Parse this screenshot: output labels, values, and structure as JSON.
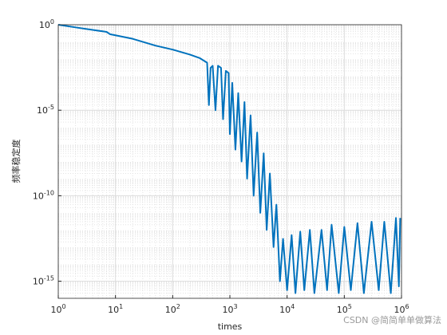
{
  "chart_data": {
    "type": "line",
    "xlabel": "times",
    "ylabel": "频率稳定度",
    "watermark": "CSDN @简简单单做算法",
    "log_x": true,
    "log_y": true,
    "grid": true,
    "minor_grid": true,
    "xlim": [
      1,
      1000000
    ],
    "ylim": [
      1e-16,
      1
    ],
    "xticks": [
      {
        "value": 1,
        "label": "10^0"
      },
      {
        "value": 10,
        "label": "10^1"
      },
      {
        "value": 100,
        "label": "10^2"
      },
      {
        "value": 1000,
        "label": "10^3"
      },
      {
        "value": 10000,
        "label": "10^4"
      },
      {
        "value": 100000,
        "label": "10^5"
      },
      {
        "value": 1000000,
        "label": "10^6"
      }
    ],
    "yticks": [
      {
        "value": 1,
        "label": "10^0"
      },
      {
        "value": 1e-05,
        "label": "10^-5"
      },
      {
        "value": 1e-10,
        "label": "10^-10"
      },
      {
        "value": 1e-15,
        "label": "10^-15"
      }
    ],
    "x": [
      1,
      2,
      4,
      7,
      8,
      10,
      20,
      50,
      100,
      200,
      300,
      400,
      430,
      460,
      500,
      560,
      620,
      700,
      760,
      850,
      950,
      1000,
      1100,
      1250,
      1400,
      1600,
      1800,
      2000,
      2300,
      2600,
      3000,
      3400,
      3900,
      4400,
      5000,
      5800,
      6500,
      7500,
      8500,
      10000,
      12000,
      14000,
      17000,
      20000,
      25000,
      30000,
      40000,
      50000,
      60000,
      80000,
      100000,
      130000,
      170000,
      220000,
      300000,
      400000,
      500000,
      650000,
      800000,
      900000,
      950000
    ],
    "series": [
      {
        "color": "#0072bd",
        "values": [
          1,
          0.7,
          0.5,
          0.38,
          0.28,
          0.24,
          0.15,
          0.06,
          0.035,
          0.018,
          0.011,
          0.006,
          2e-05,
          0.003,
          0.004,
          1e-05,
          0.004,
          0.003,
          3e-06,
          0.002,
          0.0015,
          4e-07,
          0.0004,
          5e-08,
          0.0001,
          1e-08,
          3e-05,
          1e-09,
          5e-06,
          1e-10,
          5e-07,
          1e-11,
          3e-08,
          1e-12,
          2e-09,
          1e-13,
          3e-11,
          1e-15,
          3e-13,
          3e-16,
          5e-13,
          2e-16,
          8e-13,
          3e-16,
          1e-12,
          2e-16,
          1e-12,
          3e-16,
          2e-12,
          2e-16,
          1.5e-12,
          3e-16,
          2.5e-12,
          2e-16,
          3e-12,
          3e-16,
          3e-12,
          2e-16,
          5e-12,
          5e-16,
          5e-12
        ]
      }
    ]
  }
}
